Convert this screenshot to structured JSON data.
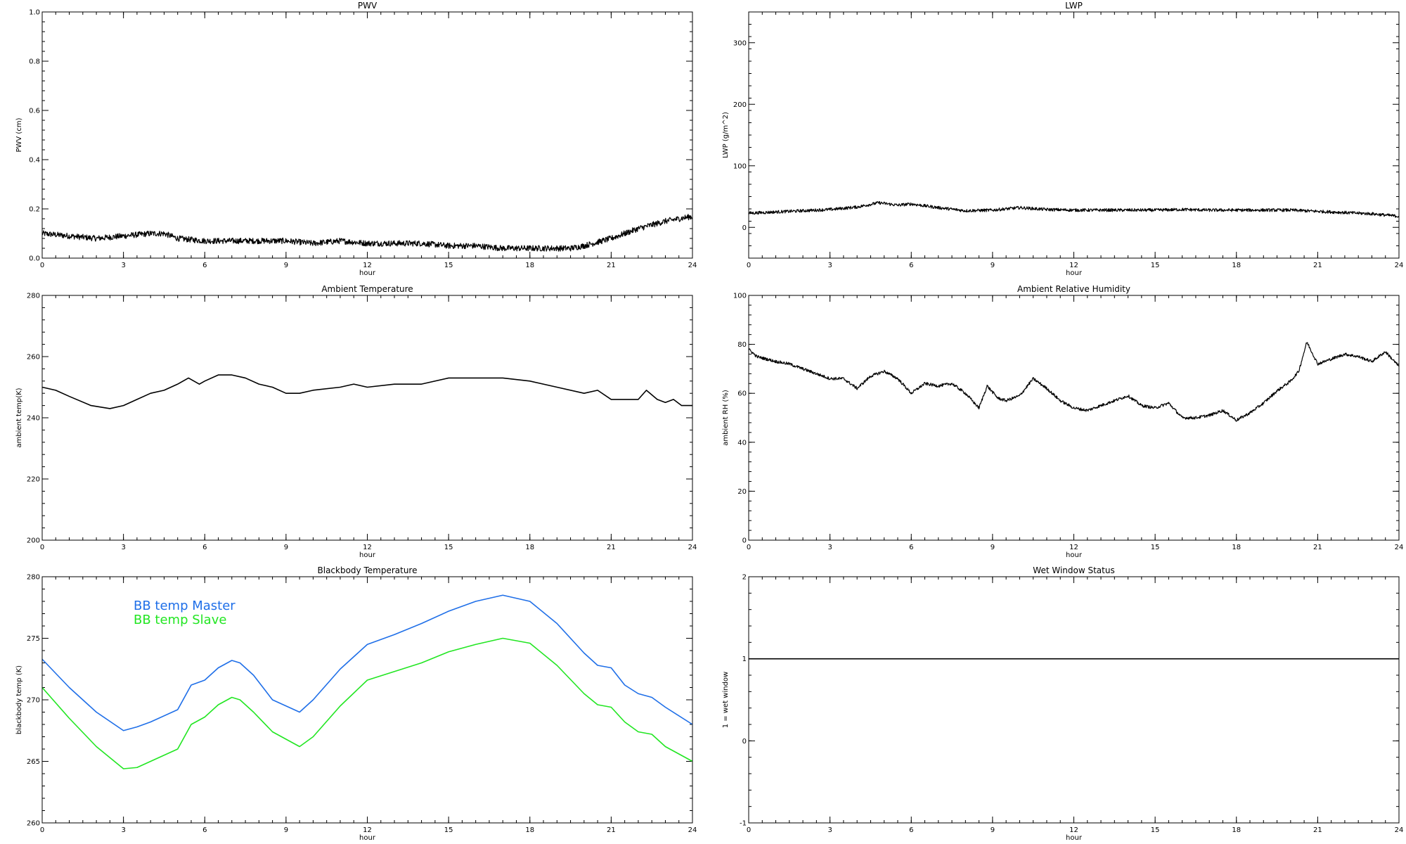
{
  "chart_data": [
    {
      "type": "line",
      "title": "PWV",
      "xlabel": "hour",
      "ylabel": "PWV (cm)",
      "xlim": [
        0,
        24
      ],
      "ylim": [
        0,
        1.0
      ],
      "xticks": [
        0,
        3,
        6,
        9,
        12,
        15,
        18,
        21,
        24
      ],
      "yticks": [
        0.0,
        0.2,
        0.4,
        0.6,
        0.8,
        1.0
      ],
      "ytick_labels": [
        "0.0",
        "0.2",
        "0.4",
        "0.6",
        "0.8",
        "1.0"
      ],
      "noisy": true,
      "noise_amp": 0.012,
      "series": [
        {
          "name": "",
          "color": "#000000",
          "x": [
            0,
            1,
            2,
            3,
            4,
            4.5,
            5,
            6,
            7,
            8,
            9,
            10,
            11,
            12,
            13,
            14,
            15,
            16,
            17,
            18,
            19,
            19.5,
            20,
            21,
            22,
            23,
            24
          ],
          "y": [
            0.1,
            0.09,
            0.08,
            0.09,
            0.1,
            0.1,
            0.08,
            0.07,
            0.07,
            0.07,
            0.07,
            0.06,
            0.07,
            0.06,
            0.06,
            0.06,
            0.05,
            0.05,
            0.04,
            0.04,
            0.04,
            0.04,
            0.05,
            0.08,
            0.12,
            0.15,
            0.17
          ]
        }
      ]
    },
    {
      "type": "line",
      "title": "LWP",
      "xlabel": "hour",
      "ylabel": "LWP (g/m^2)",
      "xlim": [
        0,
        24
      ],
      "ylim": [
        -50,
        350
      ],
      "xticks": [
        0,
        3,
        6,
        9,
        12,
        15,
        18,
        21,
        24
      ],
      "yticks": [
        0,
        100,
        200,
        300
      ],
      "ytick_labels": [
        "0",
        "100",
        "200",
        "300"
      ],
      "noisy": true,
      "noise_amp": 2.5,
      "series": [
        {
          "name": "",
          "color": "#000000",
          "x": [
            0,
            1,
            2,
            3,
            4,
            4.8,
            5.5,
            6,
            6.5,
            7,
            8,
            9,
            10,
            11,
            12,
            13,
            14,
            15,
            16,
            17,
            18,
            19,
            20,
            21,
            22,
            23,
            24
          ],
          "y": [
            23,
            25,
            27,
            29,
            33,
            40,
            36,
            38,
            35,
            32,
            27,
            28,
            32,
            29,
            28,
            28,
            28,
            28,
            29,
            28,
            28,
            28,
            28,
            26,
            24,
            22,
            18
          ]
        }
      ]
    },
    {
      "type": "line",
      "title": "Ambient Temperature",
      "xlabel": "hour",
      "ylabel": "ambient temp(K)",
      "xlim": [
        0,
        24
      ],
      "ylim": [
        200,
        280
      ],
      "xticks": [
        0,
        3,
        6,
        9,
        12,
        15,
        18,
        21,
        24
      ],
      "yticks": [
        200,
        220,
        240,
        260,
        280
      ],
      "ytick_labels": [
        "200",
        "220",
        "240",
        "260",
        "280"
      ],
      "noisy": false,
      "series": [
        {
          "name": "",
          "color": "#000000",
          "x": [
            0,
            0.5,
            1,
            1.8,
            2.5,
            3,
            3.5,
            4,
            4.5,
            5,
            5.4,
            5.8,
            6,
            6.5,
            7,
            7.5,
            8,
            8.5,
            9,
            9.5,
            10,
            11,
            11.5,
            12,
            13,
            14,
            15,
            16,
            17,
            18,
            19,
            20,
            20.5,
            21,
            21.5,
            22,
            22.3,
            22.7,
            23,
            23.3,
            23.6,
            24
          ],
          "y": [
            250,
            249,
            247,
            244,
            243,
            244,
            246,
            248,
            249,
            251,
            253,
            251,
            252,
            254,
            254,
            253,
            251,
            250,
            248,
            248,
            249,
            250,
            251,
            250,
            251,
            251,
            253,
            253,
            253,
            252,
            250,
            248,
            249,
            246,
            246,
            246,
            249,
            246,
            245,
            246,
            244,
            244
          ]
        }
      ]
    },
    {
      "type": "line",
      "title": "Ambient Relative Humidity",
      "xlabel": "hour",
      "ylabel": "ambient RH (%)",
      "xlim": [
        0,
        24
      ],
      "ylim": [
        0,
        100
      ],
      "xticks": [
        0,
        3,
        6,
        9,
        12,
        15,
        18,
        21,
        24
      ],
      "yticks": [
        0,
        20,
        40,
        60,
        80,
        100
      ],
      "ytick_labels": [
        "0",
        "20",
        "40",
        "60",
        "80",
        "100"
      ],
      "noisy": true,
      "noise_amp": 0.6,
      "series": [
        {
          "name": "",
          "color": "#000000",
          "x": [
            0,
            0.3,
            1,
            1.5,
            2,
            2.5,
            3,
            3.5,
            4,
            4.5,
            5,
            5.5,
            6,
            6.5,
            7,
            7.5,
            8,
            8.5,
            8.8,
            9.2,
            9.5,
            10,
            10.5,
            11,
            11.5,
            12,
            12.5,
            13,
            13.5,
            14,
            14.5,
            15,
            15.5,
            16,
            16.5,
            17,
            17.5,
            18,
            18.5,
            19,
            19.5,
            20,
            20.3,
            20.6,
            21,
            21.5,
            22,
            22.5,
            23,
            23.5,
            24
          ],
          "y": [
            78,
            75,
            73,
            72,
            70,
            68,
            66,
            66,
            62,
            67,
            69,
            66,
            60,
            64,
            63,
            64,
            60,
            54,
            63,
            58,
            57,
            59,
            66,
            62,
            57,
            54,
            53,
            55,
            57,
            59,
            55,
            54,
            56,
            50,
            50,
            51,
            53,
            49,
            52,
            56,
            61,
            65,
            69,
            81,
            72,
            74,
            76,
            75,
            73,
            77,
            71
          ]
        }
      ]
    },
    {
      "type": "line",
      "title": "Blackbody Temperature",
      "xlabel": "hour",
      "ylabel": "blackbody temp (K)",
      "xlim": [
        0,
        24
      ],
      "ylim": [
        260,
        280
      ],
      "xticks": [
        0,
        3,
        6,
        9,
        12,
        15,
        18,
        21,
        24
      ],
      "yticks": [
        260,
        265,
        270,
        275,
        280
      ],
      "ytick_labels": [
        "260",
        "265",
        "270",
        "275",
        "280"
      ],
      "noisy": false,
      "legend": "top-left",
      "series": [
        {
          "name": "BB temp Master",
          "color": "#1f6fe8",
          "x": [
            0,
            1,
            2,
            3,
            3.5,
            4,
            5,
            5.5,
            6,
            6.5,
            7,
            7.3,
            7.8,
            8.5,
            9.5,
            10,
            11,
            12,
            13,
            14,
            15,
            16,
            17,
            18,
            19,
            20,
            20.5,
            21,
            21.5,
            22,
            22.5,
            23,
            24
          ],
          "y": [
            273.3,
            271,
            269,
            267.5,
            267.8,
            268.2,
            269.2,
            271.2,
            271.6,
            272.6,
            273.2,
            273,
            272,
            270,
            269,
            270,
            272.5,
            274.5,
            275.3,
            276.2,
            277.2,
            278,
            278.5,
            278,
            276.2,
            273.8,
            272.8,
            272.6,
            271.2,
            270.5,
            270.2,
            269.4,
            268
          ]
        },
        {
          "name": "BB temp Slave",
          "color": "#22e622",
          "x": [
            0,
            1,
            2,
            3,
            3.5,
            4,
            5,
            5.5,
            6,
            6.5,
            7,
            7.3,
            7.8,
            8.5,
            9.5,
            10,
            11,
            12,
            13,
            14,
            15,
            16,
            17,
            18,
            19,
            20,
            20.5,
            21,
            21.5,
            22,
            22.5,
            23,
            24
          ],
          "y": [
            271,
            268.5,
            266.2,
            264.4,
            264.5,
            265,
            266,
            268,
            268.6,
            269.6,
            270.2,
            270,
            269,
            267.4,
            266.2,
            267,
            269.5,
            271.6,
            272.3,
            273,
            273.9,
            274.5,
            275,
            274.6,
            272.8,
            270.5,
            269.6,
            269.4,
            268.2,
            267.4,
            267.2,
            266.2,
            265
          ]
        }
      ]
    },
    {
      "type": "line",
      "title": "Wet Window Status",
      "xlabel": "hour",
      "ylabel": "1 = wet window",
      "xlim": [
        0,
        24
      ],
      "ylim": [
        -1,
        2
      ],
      "xticks": [
        0,
        3,
        6,
        9,
        12,
        15,
        18,
        21,
        24
      ],
      "yticks": [
        -1,
        0,
        1,
        2
      ],
      "ytick_labels": [
        "-1",
        "0",
        "1",
        "2"
      ],
      "noisy": false,
      "series": [
        {
          "name": "",
          "color": "#000000",
          "x": [
            0,
            24
          ],
          "y": [
            1,
            1
          ]
        }
      ]
    }
  ]
}
